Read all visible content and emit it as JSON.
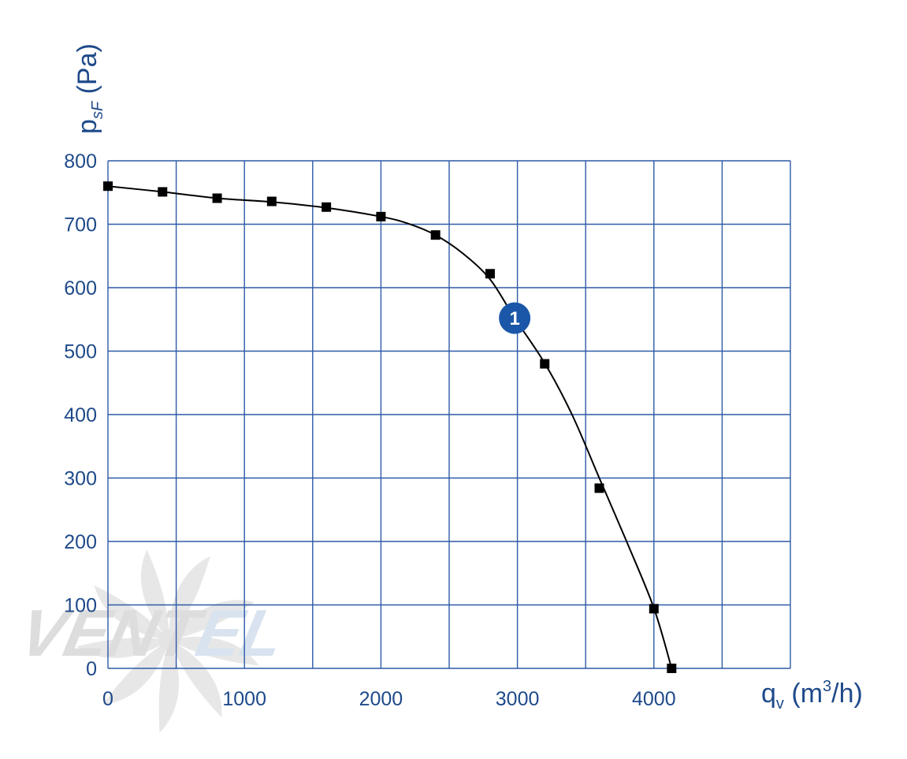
{
  "chart_data": {
    "type": "line",
    "title": "",
    "xlabel": {
      "main": "q",
      "sub": "v",
      "unit_open": " (m",
      "unit_sup": "3",
      "unit_close": "/h)"
    },
    "ylabel": {
      "main": "p",
      "sub": "sF",
      "unit": " (Pa)"
    },
    "xlim": [
      0,
      5000
    ],
    "ylim": [
      0,
      800
    ],
    "xticks": [
      0,
      1000,
      2000,
      3000,
      4000
    ],
    "xtick_labels": [
      "0",
      "1000",
      "2000",
      "3000",
      "4000"
    ],
    "yticks": [
      0,
      100,
      200,
      300,
      400,
      500,
      600,
      700,
      800
    ],
    "ytick_labels": [
      "0",
      "100",
      "200",
      "300",
      "400",
      "500",
      "600",
      "700",
      "800"
    ],
    "grid": true,
    "grid_x": [
      0,
      500,
      1000,
      1500,
      2000,
      2500,
      3000,
      3500,
      4000,
      4500,
      5000
    ],
    "grid_y": [
      0,
      100,
      200,
      300,
      400,
      500,
      600,
      700,
      800
    ],
    "series": [
      {
        "marker": "square",
        "curve": [
          [
            0,
            760
          ],
          [
            400,
            751
          ],
          [
            800,
            741
          ],
          [
            1200,
            735
          ],
          [
            1600,
            726
          ],
          [
            2000,
            712
          ],
          [
            2200,
            701
          ],
          [
            2400,
            683
          ],
          [
            2600,
            654
          ],
          [
            2800,
            613
          ],
          [
            2980,
            552
          ],
          [
            3200,
            481
          ],
          [
            3400,
            400
          ],
          [
            3600,
            300
          ],
          [
            3800,
            200
          ],
          [
            4000,
            95
          ],
          [
            4130,
            0
          ]
        ],
        "points": [
          [
            0,
            760
          ],
          [
            400,
            751
          ],
          [
            800,
            741
          ],
          [
            1200,
            736
          ],
          [
            1600,
            727
          ],
          [
            2000,
            712
          ],
          [
            2400,
            683
          ],
          [
            2800,
            622
          ],
          [
            3200,
            480
          ],
          [
            3600,
            284
          ],
          [
            4000,
            94
          ],
          [
            4130,
            0
          ]
        ]
      }
    ],
    "annotations": [
      {
        "label": "1",
        "x": 2980,
        "y": 552
      }
    ],
    "watermark": {
      "text_a": "VENT",
      "text_b": "EL"
    }
  }
}
